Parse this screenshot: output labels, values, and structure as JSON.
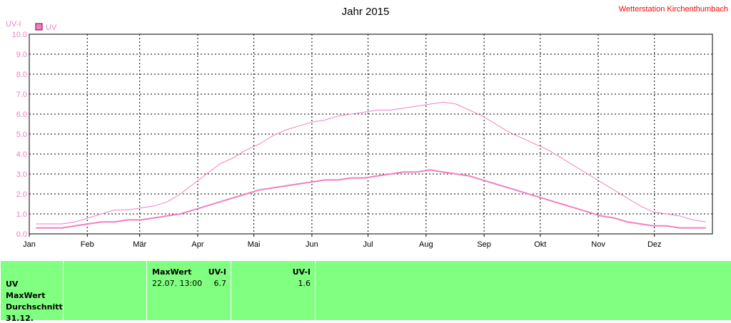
{
  "chart_data": {
    "type": "line",
    "title": "Jahr 2015",
    "station": "Wetterstation Kirchenthumbach",
    "ylabel": "UV-I",
    "ylim": [
      0,
      10
    ],
    "yticks": [
      "0.0",
      "1.0",
      "2.0",
      "3.0",
      "4.0",
      "5.0",
      "6.0",
      "7.0",
      "8.0",
      "9.0",
      "10.0"
    ],
    "xticks": [
      "Jan",
      "Feb",
      "Mär",
      "Apr",
      "Mai",
      "Jun",
      "Jul",
      "Aug",
      "Sep",
      "Okt",
      "Nov",
      "Dez"
    ],
    "grid": true,
    "legend": {
      "position": "top-left",
      "entries": [
        "UV"
      ]
    },
    "series": [
      {
        "name": "UV",
        "role": "daily-max",
        "color": "#f080c0",
        "weeks": [
          0.5,
          0.5,
          0.5,
          0.6,
          0.8,
          1.0,
          1.2,
          1.2,
          1.3,
          1.4,
          1.6,
          2.0,
          2.5,
          3.0,
          3.5,
          3.8,
          4.2,
          4.5,
          4.9,
          5.2,
          5.4,
          5.6,
          5.7,
          5.9,
          6.0,
          6.1,
          6.2,
          6.2,
          6.3,
          6.4,
          6.5,
          6.6,
          6.5,
          6.2,
          5.9,
          5.5,
          5.1,
          4.8,
          4.5,
          4.2,
          3.8,
          3.4,
          3.0,
          2.6,
          2.2,
          1.8,
          1.4,
          1.1,
          1.0,
          0.9,
          0.7,
          0.6
        ]
      },
      {
        "name": "",
        "role": "daily-mean",
        "color": "#f080c0",
        "weeks": [
          0.3,
          0.3,
          0.3,
          0.4,
          0.5,
          0.6,
          0.6,
          0.7,
          0.7,
          0.8,
          0.9,
          1.0,
          1.2,
          1.4,
          1.6,
          1.8,
          2.0,
          2.2,
          2.3,
          2.4,
          2.5,
          2.6,
          2.7,
          2.7,
          2.8,
          2.8,
          2.9,
          3.0,
          3.1,
          3.1,
          3.2,
          3.1,
          3.0,
          2.9,
          2.7,
          2.5,
          2.3,
          2.1,
          1.9,
          1.7,
          1.5,
          1.3,
          1.1,
          0.9,
          0.8,
          0.6,
          0.5,
          0.4,
          0.4,
          0.3,
          0.3,
          0.3
        ]
      }
    ]
  },
  "table": {
    "col1": [
      "UV",
      "MaxWert",
      "Durchschnitt",
      "31.12."
    ],
    "max_header": "MaxWert",
    "unit": "UV-I",
    "max_date": "22.07. 13:00",
    "max_value": "6.7",
    "avg_value": "1.6"
  }
}
